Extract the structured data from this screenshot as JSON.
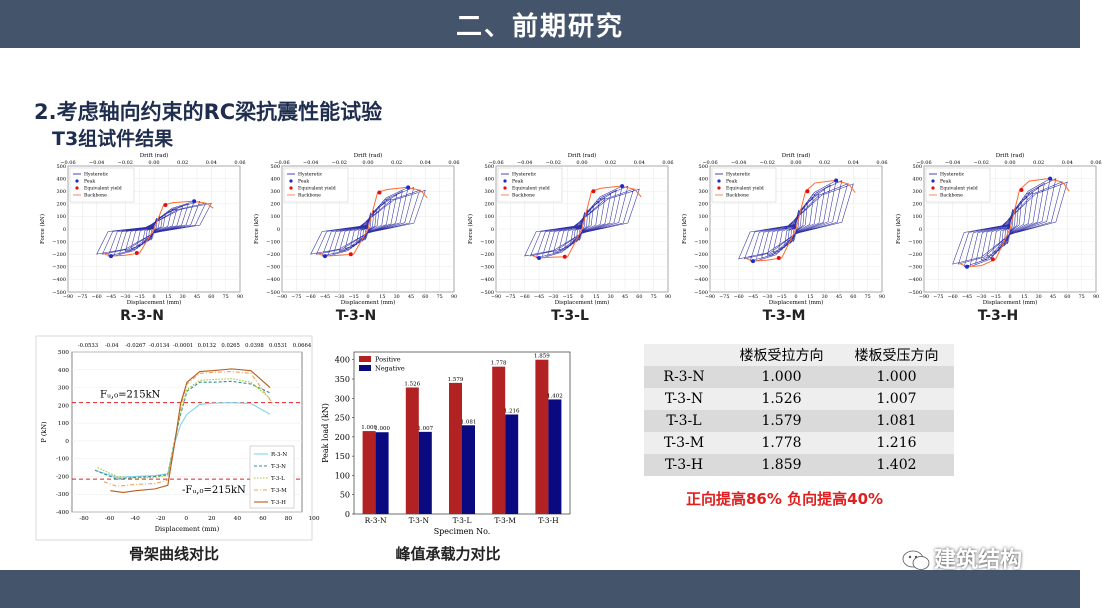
{
  "header": {
    "title": "二、前期研究"
  },
  "section": {
    "heading": "2.考虑轴向约束的RC梁抗震性能试验",
    "subheading": "T3组试件结果"
  },
  "mini_common": {
    "top_label": "Drift (rad)",
    "top_ticks": [
      "−0.06",
      "−0.04",
      "−0.02",
      "0.00",
      "0.02",
      "0.04",
      "0.06"
    ],
    "x_label": "Displacement (mm)",
    "x_ticks": [
      "−90",
      "−75",
      "−60",
      "−45",
      "−30",
      "−15",
      "0",
      "15",
      "30",
      "45",
      "60",
      "75",
      "90"
    ],
    "y_label": "Force (kN)",
    "y_ticks": [
      "500",
      "400",
      "300",
      "200",
      "100",
      "0",
      "−100",
      "−200",
      "−300",
      "−400",
      "−500"
    ],
    "legend": [
      "Hysteretic",
      "Peak",
      "Equivalent yield",
      "Backbone"
    ]
  },
  "specimens": [
    {
      "name": "R-3-N"
    },
    {
      "name": "T-3-N"
    },
    {
      "name": "T-3-L"
    },
    {
      "name": "T-3-M"
    },
    {
      "name": "T-3-H"
    }
  ],
  "chart_data": [
    {
      "type": "line",
      "title": "",
      "xlabel": "Displacement (mm)",
      "ylabel": "P (kN)",
      "top_ticks": [
        "-0.0533",
        "-0.04",
        "-0.0267",
        "-0.0134",
        "-0.0001",
        "0.0132",
        "0.0265",
        "0.0398",
        "0.0531",
        "0.0664"
      ],
      "x_ticks": [
        "-80",
        "-60",
        "-40",
        "-20",
        "0",
        "20",
        "40",
        "60",
        "80",
        "100"
      ],
      "y_ticks": [
        "500",
        "400",
        "300",
        "200",
        "100",
        "0",
        "-100",
        "-200",
        "-300",
        "-400"
      ],
      "xlim": [
        -80,
        100
      ],
      "ylim": [
        -400,
        500
      ],
      "annotations": [
        "Fᵤ,₀=215kN",
        "-Fᵤ,₀=215kN"
      ],
      "ref_lines": [
        215,
        -215
      ],
      "series": [
        {
          "name": "R-3-N",
          "color": "#7fd4ec",
          "x": [
            -60,
            -45,
            -30,
            -15,
            -5,
            0,
            5,
            10,
            20,
            30,
            45,
            60,
            75
          ],
          "y": [
            -170,
            -205,
            -200,
            -195,
            -185,
            -20,
            90,
            150,
            205,
            212,
            215,
            210,
            150
          ]
        },
        {
          "name": "T-3-N",
          "color": "#2e8f8f",
          "x": [
            -62,
            -45,
            -30,
            -15,
            -5,
            0,
            5,
            10,
            20,
            30,
            45,
            60,
            75
          ],
          "y": [
            -165,
            -215,
            -205,
            -200,
            -190,
            -10,
            150,
            280,
            330,
            330,
            335,
            320,
            270
          ]
        },
        {
          "name": "T-3-L",
          "color": "#a5c43a",
          "x": [
            -60,
            -45,
            -30,
            -15,
            -5,
            0,
            5,
            10,
            20,
            30,
            45,
            60,
            75
          ],
          "y": [
            -150,
            -200,
            -210,
            -205,
            -195,
            -20,
            160,
            290,
            340,
            345,
            350,
            330,
            240
          ]
        },
        {
          "name": "T-3-M",
          "color": "#f0a060",
          "x": [
            -55,
            -45,
            -30,
            -15,
            -5,
            0,
            5,
            10,
            20,
            30,
            45,
            60,
            78
          ],
          "y": [
            -230,
            -255,
            -245,
            -240,
            -220,
            -20,
            190,
            320,
            380,
            385,
            390,
            380,
            200
          ]
        },
        {
          "name": "T-3-H",
          "color": "#b85c1a",
          "x": [
            -50,
            -40,
            -30,
            -15,
            -5,
            0,
            5,
            10,
            20,
            30,
            45,
            60,
            75
          ],
          "y": [
            -280,
            -290,
            -280,
            -270,
            -250,
            -30,
            210,
            330,
            390,
            395,
            405,
            395,
            300
          ]
        }
      ]
    },
    {
      "type": "bar",
      "title": "",
      "xlabel": "Specimen No.",
      "ylabel": "Peak load (kN)",
      "categories": [
        "R-3-N",
        "T-3-N",
        "T-3-L",
        "T-3-M",
        "T-3-H"
      ],
      "y_ticks": [
        "0",
        "50",
        "100",
        "150",
        "200",
        "250",
        "300",
        "350",
        "400"
      ],
      "ylim": [
        0,
        420
      ],
      "series": [
        {
          "name": "Positive",
          "color": "#b22222",
          "values": [
            215,
            328,
            340,
            382,
            400
          ],
          "labels": [
            "1.000",
            "1.526",
            "1.579",
            "1.778",
            "1.859"
          ]
        },
        {
          "name": "Negative",
          "color": "#0a0a80",
          "values": [
            212,
            213,
            230,
            258,
            297
          ],
          "labels": [
            "1.000",
            "1.007",
            "1.081",
            "1.216",
            "1.402"
          ]
        }
      ]
    }
  ],
  "captions": {
    "backbone": "骨架曲线对比",
    "peak": "峰值承载力对比"
  },
  "table": {
    "headers": [
      "",
      "楼板受拉方向",
      "楼板受压方向"
    ],
    "rows": [
      [
        "R-3-N",
        "1.000",
        "1.000"
      ],
      [
        "T-3-N",
        "1.526",
        "1.007"
      ],
      [
        "T-3-L",
        "1.579",
        "1.081"
      ],
      [
        "T-3-M",
        "1.778",
        "1.216"
      ],
      [
        "T-3-H",
        "1.859",
        "1.402"
      ]
    ]
  },
  "note": "正向提高86%  负向提高40%",
  "logo": "建筑结构",
  "colors": {
    "header": "#44546a",
    "positive": "#b22222",
    "negative": "#0a0a80",
    "hysteretic": "#1a1a9c",
    "backbone": "#ff6a2a"
  }
}
